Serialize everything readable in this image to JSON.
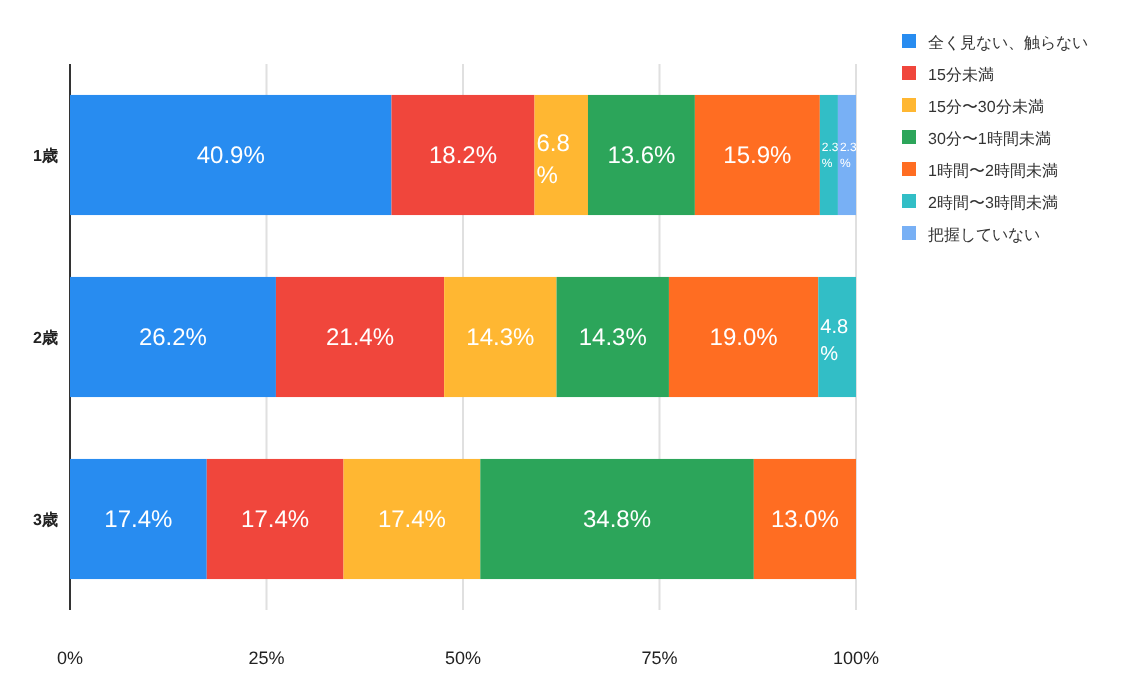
{
  "chart_data": {
    "type": "bar",
    "orientation": "horizontal",
    "stacked": true,
    "categories": [
      "1歳",
      "2歳",
      "3歳"
    ],
    "series": [
      {
        "name": "全く見ない、触らない",
        "color": "#288cf0",
        "values": [
          40.9,
          26.2,
          17.4
        ],
        "value_labels": [
          "40.9%",
          "26.2%",
          "17.4%"
        ]
      },
      {
        "name": "15分未満",
        "color": "#f0463c",
        "values": [
          18.2,
          21.4,
          17.4
        ],
        "value_labels": [
          "18.2%",
          "21.4%",
          "17.4%"
        ]
      },
      {
        "name": "15分〜30分未満",
        "color": "#ffb732",
        "values": [
          6.8,
          14.3,
          17.4
        ],
        "value_labels": [
          "6.8%",
          "14.3%",
          "17.4%"
        ]
      },
      {
        "name": "30分〜1時間未満",
        "color": "#2ca55a",
        "values": [
          13.6,
          14.3,
          34.8
        ],
        "value_labels": [
          "13.6%",
          "14.3%",
          "34.8%"
        ]
      },
      {
        "name": "1時間〜2時間未満",
        "color": "#ff6d22",
        "values": [
          15.9,
          19.0,
          13.0
        ],
        "value_labels": [
          "15.9%",
          "19.0%",
          "13.0%"
        ]
      },
      {
        "name": "2時間〜3時間未満",
        "color": "#32bec6",
        "values": [
          2.3,
          4.8,
          null
        ],
        "value_labels": [
          "2.3%",
          "4.8%",
          null
        ]
      },
      {
        "name": "把握していない",
        "color": "#78b0f5",
        "values": [
          2.3,
          null,
          null
        ],
        "value_labels": [
          "2.3%",
          null,
          null
        ]
      }
    ],
    "xlim": [
      0,
      100
    ],
    "xticks": [
      {
        "value": 0,
        "label": "0%"
      },
      {
        "value": 25,
        "label": "25%"
      },
      {
        "value": 50,
        "label": "50%"
      },
      {
        "value": 75,
        "label": "75%"
      },
      {
        "value": 100,
        "label": "100%"
      }
    ],
    "grid": "x",
    "legend": "right"
  }
}
